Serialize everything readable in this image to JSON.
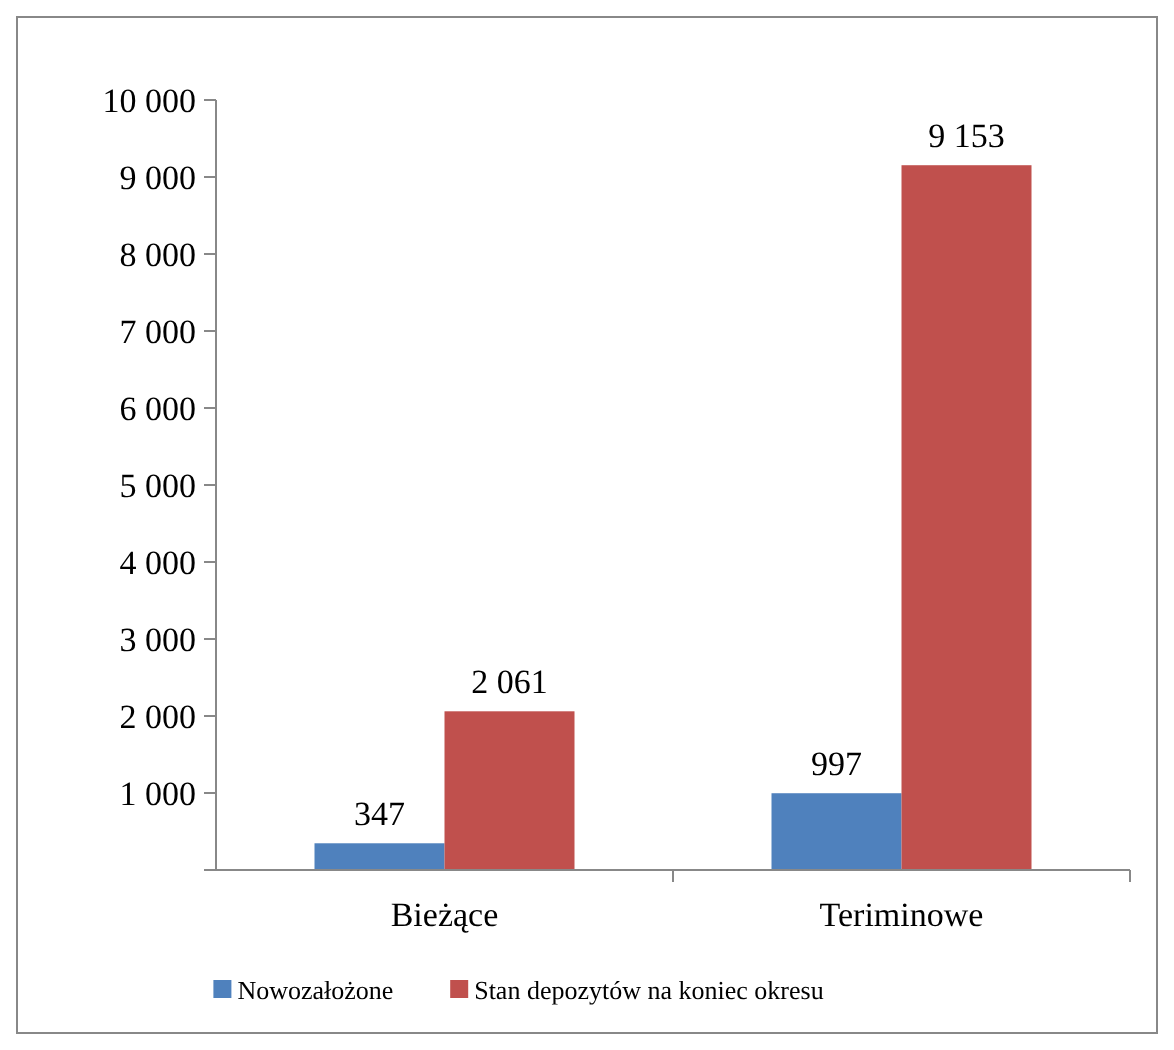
{
  "chart_data": {
    "type": "bar",
    "categories": [
      "Bieżące",
      "Teriminowe"
    ],
    "series": [
      {
        "name": "Nowozałożone",
        "color": "#4f81bd",
        "values": [
          347,
          997
        ],
        "value_labels": [
          "347",
          "997"
        ]
      },
      {
        "name": "Stan depozytów na koniec okresu",
        "color": "#c0504d",
        "values": [
          2061,
          9153
        ],
        "value_labels": [
          "2 061",
          "9 153"
        ]
      }
    ],
    "ylim": [
      0,
      10000
    ],
    "yticks": [
      {
        "value": 0,
        "label": null
      },
      {
        "value": 1000,
        "label": "1 000"
      },
      {
        "value": 2000,
        "label": "2 000"
      },
      {
        "value": 3000,
        "label": "3 000"
      },
      {
        "value": 4000,
        "label": "4 000"
      },
      {
        "value": 5000,
        "label": "5 000"
      },
      {
        "value": 6000,
        "label": "6 000"
      },
      {
        "value": 7000,
        "label": "7 000"
      },
      {
        "value": 8000,
        "label": "8 000"
      },
      {
        "value": 9000,
        "label": "9 000"
      },
      {
        "value": 10000,
        "label": "10 000"
      }
    ],
    "grid": false,
    "legend": "bottom"
  }
}
